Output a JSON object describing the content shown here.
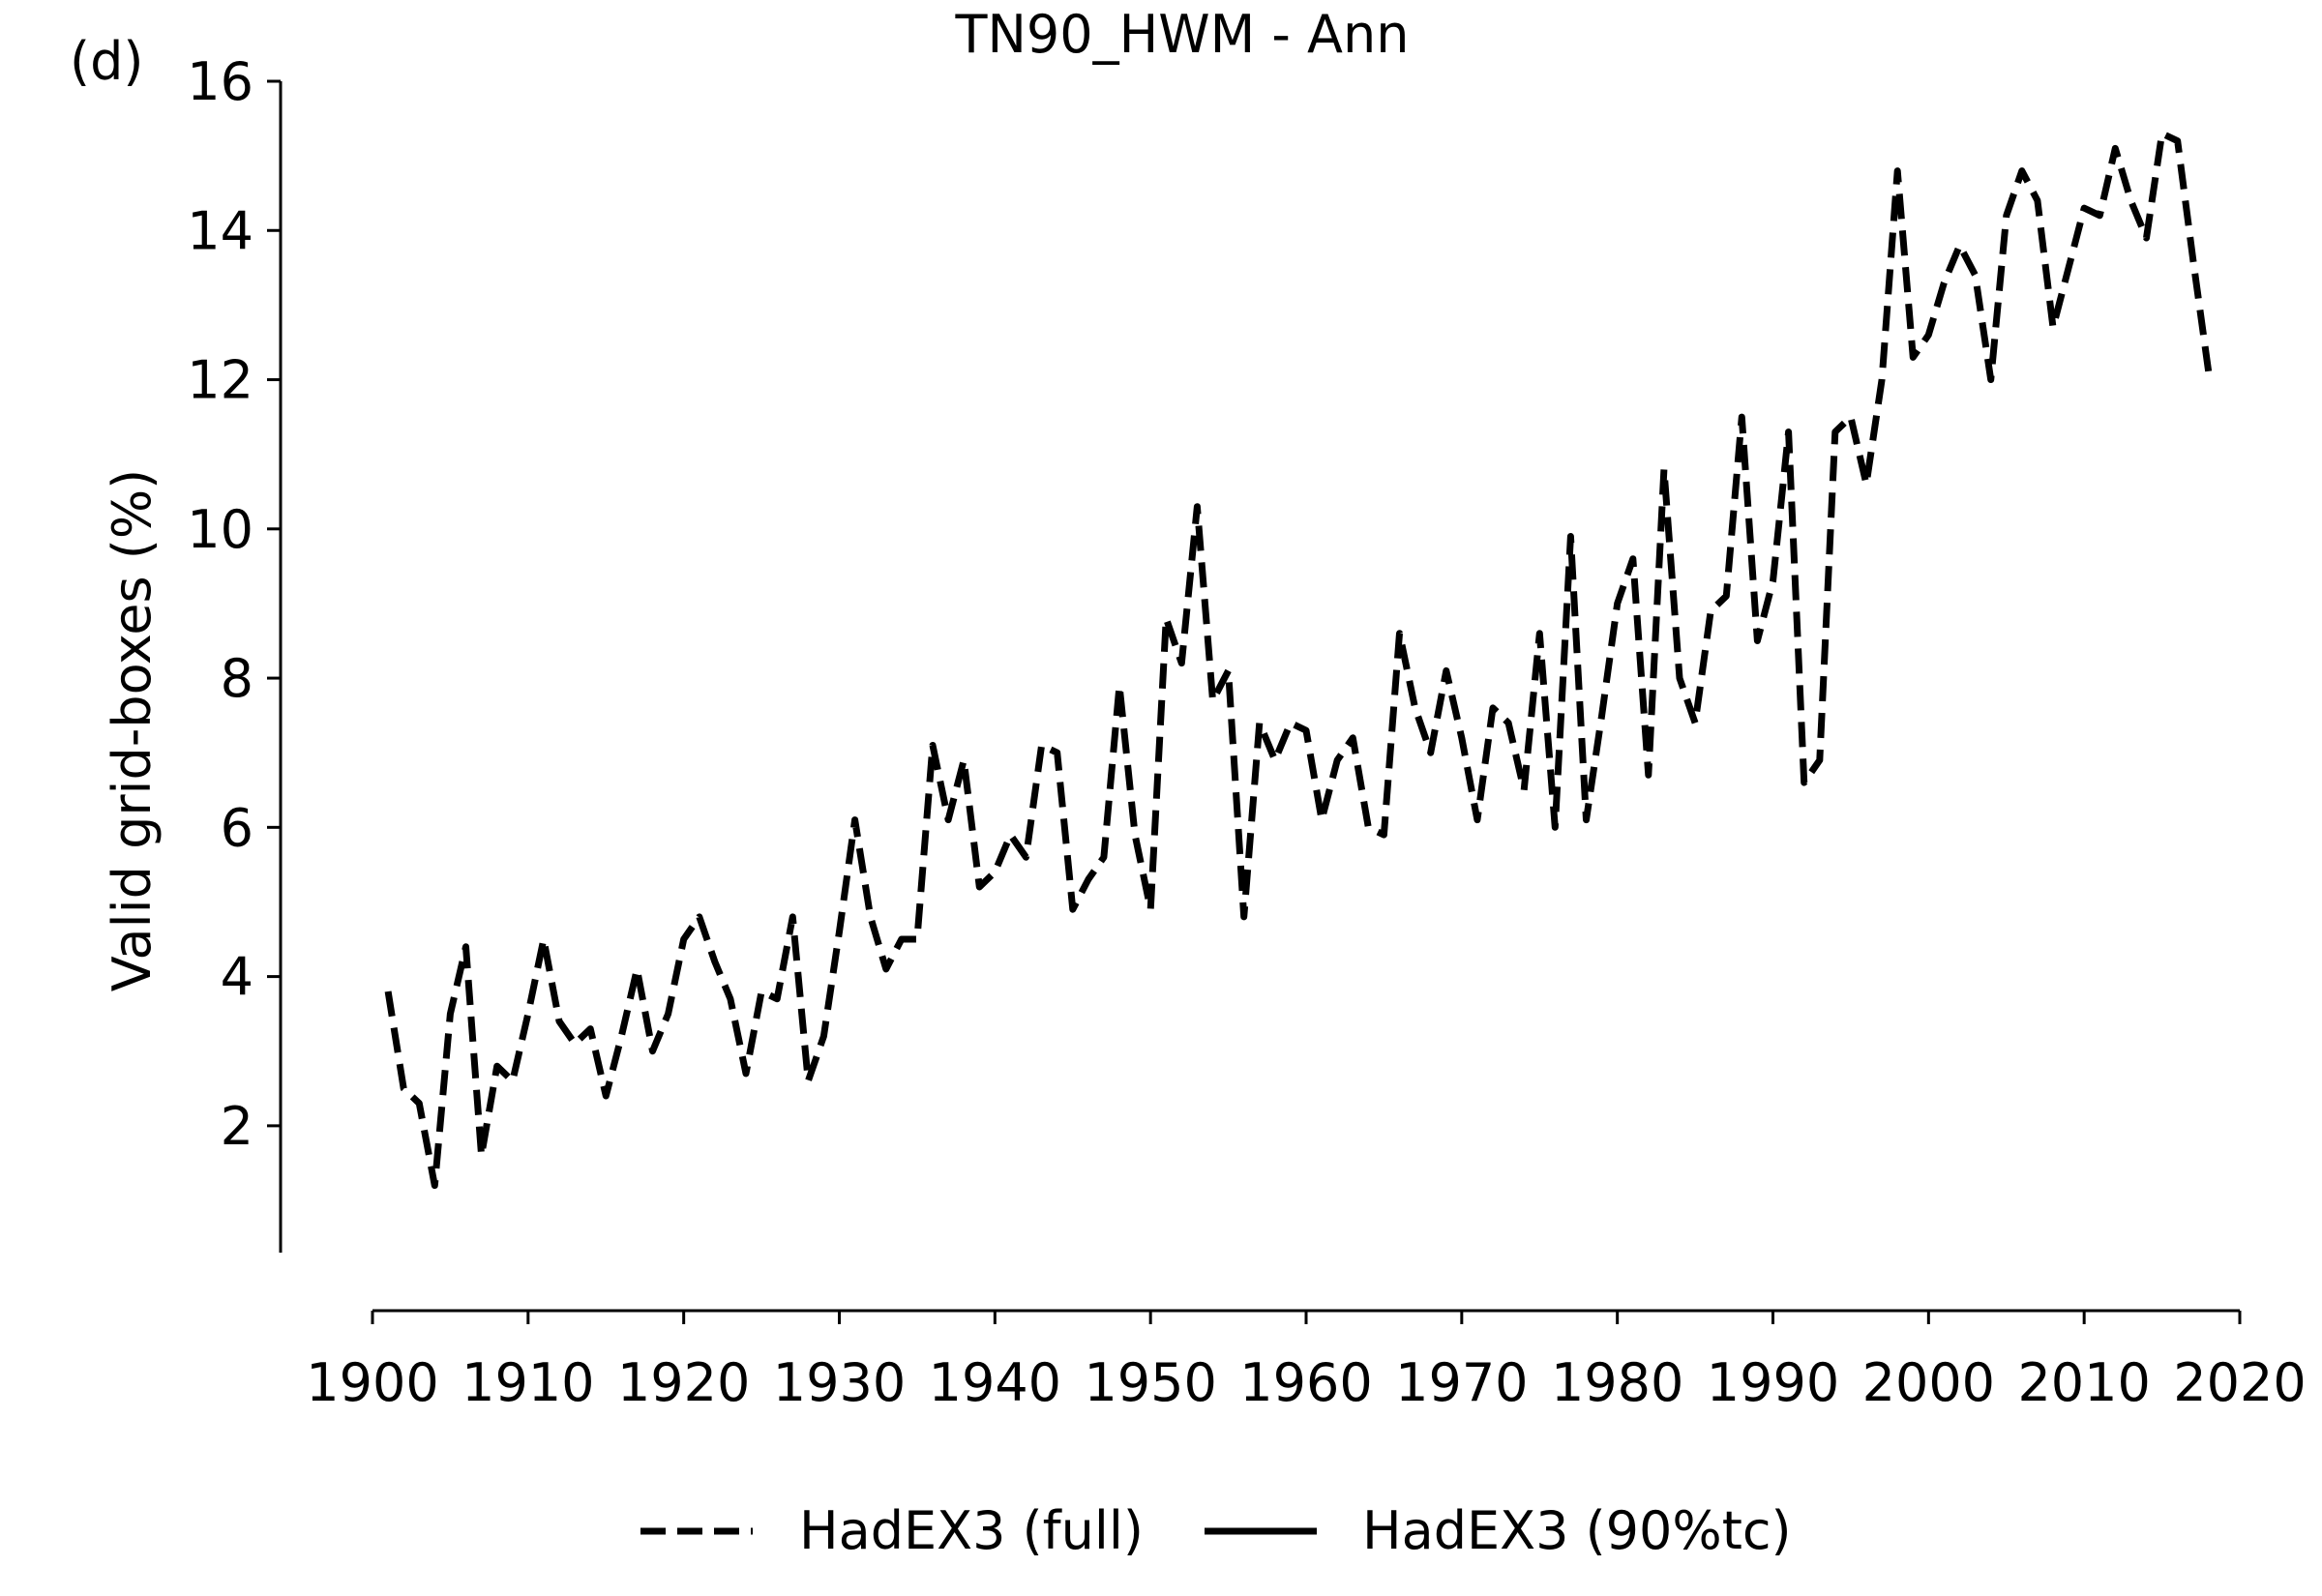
{
  "panel_label": "(d)",
  "chart_data": {
    "type": "line",
    "title": "TN90_HWM - Ann",
    "xlabel": "",
    "ylabel": "Valid grid-boxes (%)",
    "xlim": [
      1900,
      2020
    ],
    "ylim": [
      0.3,
      16
    ],
    "x_ticks": [
      1900,
      1910,
      1920,
      1930,
      1940,
      1950,
      1960,
      1970,
      1980,
      1990,
      2000,
      2010,
      2020
    ],
    "y_ticks": [
      2,
      4,
      6,
      8,
      10,
      12,
      14,
      16
    ],
    "grid": false,
    "legend_placement": "bottom-center",
    "series": [
      {
        "name": "HadEX3 (full)",
        "style": "dashed",
        "color": "#000000",
        "x": [
          1901,
          1902,
          1903,
          1904,
          1905,
          1906,
          1907,
          1908,
          1909,
          1910,
          1911,
          1912,
          1913,
          1914,
          1915,
          1916,
          1917,
          1918,
          1919,
          1920,
          1921,
          1922,
          1923,
          1924,
          1925,
          1926,
          1927,
          1928,
          1929,
          1930,
          1931,
          1932,
          1933,
          1934,
          1935,
          1936,
          1937,
          1938,
          1939,
          1940,
          1941,
          1942,
          1943,
          1944,
          1945,
          1946,
          1947,
          1948,
          1949,
          1950,
          1951,
          1952,
          1953,
          1954,
          1955,
          1956,
          1957,
          1958,
          1959,
          1960,
          1961,
          1962,
          1963,
          1964,
          1965,
          1966,
          1967,
          1968,
          1969,
          1970,
          1971,
          1972,
          1973,
          1974,
          1975,
          1976,
          1977,
          1978,
          1979,
          1980,
          1981,
          1982,
          1983,
          1984,
          1985,
          1986,
          1987,
          1988,
          1989,
          1990,
          1991,
          1992,
          1993,
          1994,
          1995,
          1996,
          1997,
          1998,
          1999,
          2000,
          2001,
          2002,
          2003,
          2004,
          2005,
          2006,
          2007,
          2008,
          2009,
          2010,
          2011,
          2012,
          2013,
          2014,
          2015,
          2016,
          2017,
          2018
        ],
        "values": [
          3.8,
          2.5,
          2.3,
          1.2,
          3.5,
          4.4,
          1.6,
          2.8,
          2.6,
          3.5,
          4.5,
          3.4,
          3.1,
          3.3,
          2.4,
          3.2,
          4.1,
          3.0,
          3.5,
          4.5,
          4.8,
          4.2,
          3.7,
          2.7,
          3.8,
          3.7,
          4.8,
          2.6,
          3.2,
          4.6,
          6.1,
          4.8,
          4.1,
          4.5,
          4.5,
          7.1,
          6.1,
          6.9,
          5.2,
          5.4,
          5.9,
          5.6,
          7.1,
          7.0,
          4.9,
          5.3,
          5.6,
          7.9,
          5.9,
          4.9,
          8.8,
          8.2,
          10.3,
          7.7,
          8.1,
          4.8,
          7.4,
          6.9,
          7.4,
          7.3,
          6.1,
          6.9,
          7.2,
          6.0,
          5.9,
          8.6,
          7.6,
          7.0,
          8.1,
          7.2,
          6.1,
          7.6,
          7.4,
          6.5,
          8.6,
          6.0,
          9.9,
          6.1,
          7.5,
          9.0,
          9.6,
          6.7,
          10.8,
          8.0,
          7.4,
          8.9,
          9.1,
          11.5,
          8.5,
          9.3,
          11.3,
          6.6,
          6.9,
          11.3,
          11.5,
          10.6,
          12.0,
          14.8,
          12.3,
          12.6,
          13.3,
          13.8,
          13.4,
          12.0,
          14.2,
          14.8,
          14.4,
          12.7,
          13.5,
          14.3,
          14.2,
          15.1,
          14.4,
          13.9,
          15.3,
          15.2,
          13.6,
          12.1
        ]
      },
      {
        "name": "HadEX3 (90%tc)",
        "style": "solid",
        "color": "#000000",
        "x": [],
        "values": []
      }
    ]
  }
}
